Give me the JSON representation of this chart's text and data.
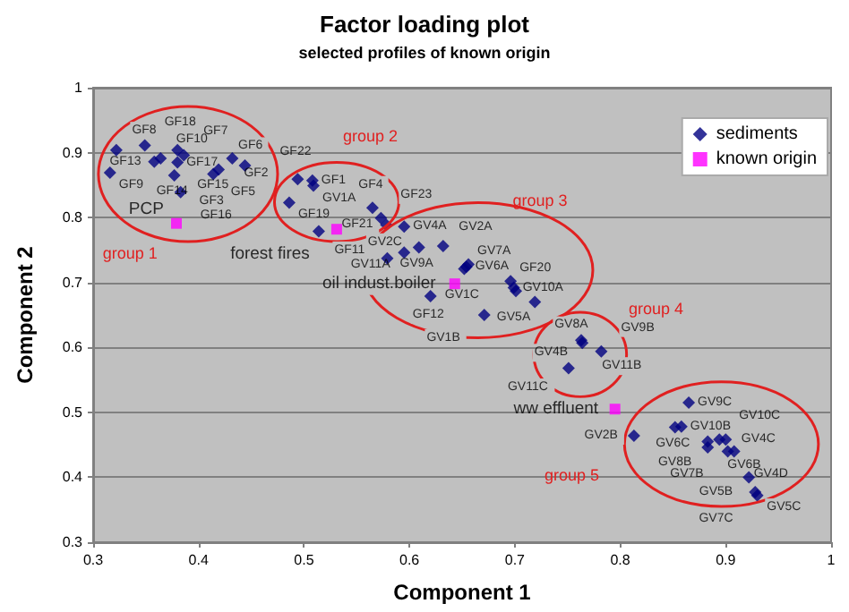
{
  "chart_data": {
    "type": "scatter",
    "title": "Factor loading plot",
    "subtitle": "selected profiles of known origin",
    "xlabel": "Component 1",
    "ylabel": "Component 2",
    "xlim": [
      0.3,
      1
    ],
    "xticks": [
      0.3,
      0.4,
      0.5,
      0.6,
      0.7,
      0.8,
      0.9,
      1
    ],
    "ylim": [
      0.3,
      1
    ],
    "yticks": [
      0.3,
      0.4,
      0.5,
      0.6,
      0.7,
      0.8,
      0.9,
      1
    ],
    "grid": "y",
    "legend": "top right",
    "series": [
      {
        "name": "sediments",
        "color": "#000080",
        "marker": "diamond",
        "x": [
          0.322,
          0.349,
          0.316,
          0.358,
          0.364,
          0.38,
          0.386,
          0.38,
          0.377,
          0.414,
          0.419,
          0.432,
          0.444,
          0.383,
          0.494,
          0.508,
          0.509,
          0.486,
          0.565,
          0.573,
          0.578,
          0.514,
          0.595,
          0.609,
          0.632,
          0.595,
          0.579,
          0.656,
          0.654,
          0.652,
          0.696,
          0.699,
          0.701,
          0.62,
          0.719,
          0.671,
          0.763,
          0.764,
          0.782,
          0.751,
          0.865,
          0.852,
          0.858,
          0.813,
          0.883,
          0.883,
          0.894,
          0.9,
          0.902,
          0.908,
          0.922,
          0.928,
          0.93
        ],
        "values": [
          0.904,
          0.911,
          0.869,
          0.886,
          0.891,
          0.904,
          0.896,
          0.885,
          0.865,
          0.867,
          0.874,
          0.891,
          0.88,
          0.839,
          0.859,
          0.857,
          0.849,
          0.823,
          0.815,
          0.799,
          0.789,
          0.779,
          0.786,
          0.754,
          0.756,
          0.746,
          0.737,
          0.728,
          0.724,
          0.721,
          0.702,
          0.692,
          0.687,
          0.679,
          0.67,
          0.65,
          0.611,
          0.607,
          0.594,
          0.568,
          0.515,
          0.477,
          0.478,
          0.464,
          0.446,
          0.455,
          0.458,
          0.458,
          0.44,
          0.44,
          0.4,
          0.377,
          0.372
        ],
        "value_labels": [
          "GF8",
          "GF18",
          "GF9",
          "GF13",
          "GF10",
          "GF17",
          "GF7",
          "GF15",
          "GF14",
          "GF3",
          "GF6",
          "GF2",
          "GF5",
          "GF16",
          "GF22",
          "GF1",
          "GV1A",
          "GF19",
          "GF4",
          "GF23",
          "GF21",
          "GF11",
          "GV4A",
          "GV9A",
          "GV2A",
          "GV11A",
          "GV2C",
          "GV7A",
          "GV6A",
          "GV1C",
          "GF20",
          "GV10A",
          "GV5A",
          "GF12",
          "GV8A",
          "GV1B",
          "GV4B",
          "GV11B",
          "GV9B",
          "GV11C",
          "GV9C",
          "GV6C",
          "GV10B",
          "GV2B",
          "GV8B",
          "GV6B",
          "GV10C",
          "GV4C",
          "GV7B",
          "GV4D",
          "GV5B",
          "GV5C",
          "GV7C"
        ]
      },
      {
        "name": "known origin",
        "color": "#ff00ff",
        "marker": "square",
        "x": [
          0.379,
          0.531,
          0.643,
          0.795
        ],
        "values": [
          0.791,
          0.782,
          0.698,
          0.505
        ],
        "value_labels": [
          "PCP",
          "forest fires",
          "oil indust.boiler",
          "ww effluent"
        ]
      }
    ],
    "annotations": [
      "group 1",
      "group 2",
      "group 3",
      "group 4",
      "group 5"
    ]
  }
}
